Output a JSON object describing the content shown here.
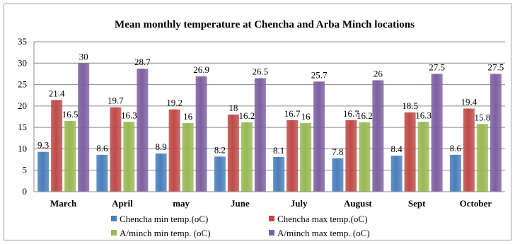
{
  "chart_data": {
    "type": "bar",
    "title": "Mean monthly temperature at Chencha and Arba Minch locations",
    "categories": [
      "March",
      "April",
      "may",
      "June",
      "July",
      "August",
      "Sept",
      "October"
    ],
    "ylim": [
      0,
      35
    ],
    "yticks": [
      0,
      5,
      10,
      15,
      20,
      25,
      30,
      35
    ],
    "grid": true,
    "legend_position": "bottom",
    "series": [
      {
        "name": "Chencha min temp.(oC)",
        "color": "#4a7ebb",
        "values": [
          9.3,
          8.6,
          8.9,
          8.2,
          8.1,
          7.8,
          8.4,
          8.6
        ]
      },
      {
        "name": "Chencha max temp.(oC)",
        "color": "#be4b48",
        "values": [
          21.4,
          19.7,
          19.2,
          18,
          16.7,
          16.7,
          18.5,
          19.4
        ]
      },
      {
        "name": "A/minch min temp. (oC)",
        "color": "#98b954",
        "values": [
          16.5,
          16.3,
          16,
          16.2,
          16,
          16.2,
          16.3,
          15.8
        ]
      },
      {
        "name": "A/minch max temp. (oC)",
        "color": "#7d60a0",
        "values": [
          30,
          28.7,
          26.9,
          26.5,
          25.7,
          26,
          27.5,
          27.5
        ]
      }
    ]
  }
}
